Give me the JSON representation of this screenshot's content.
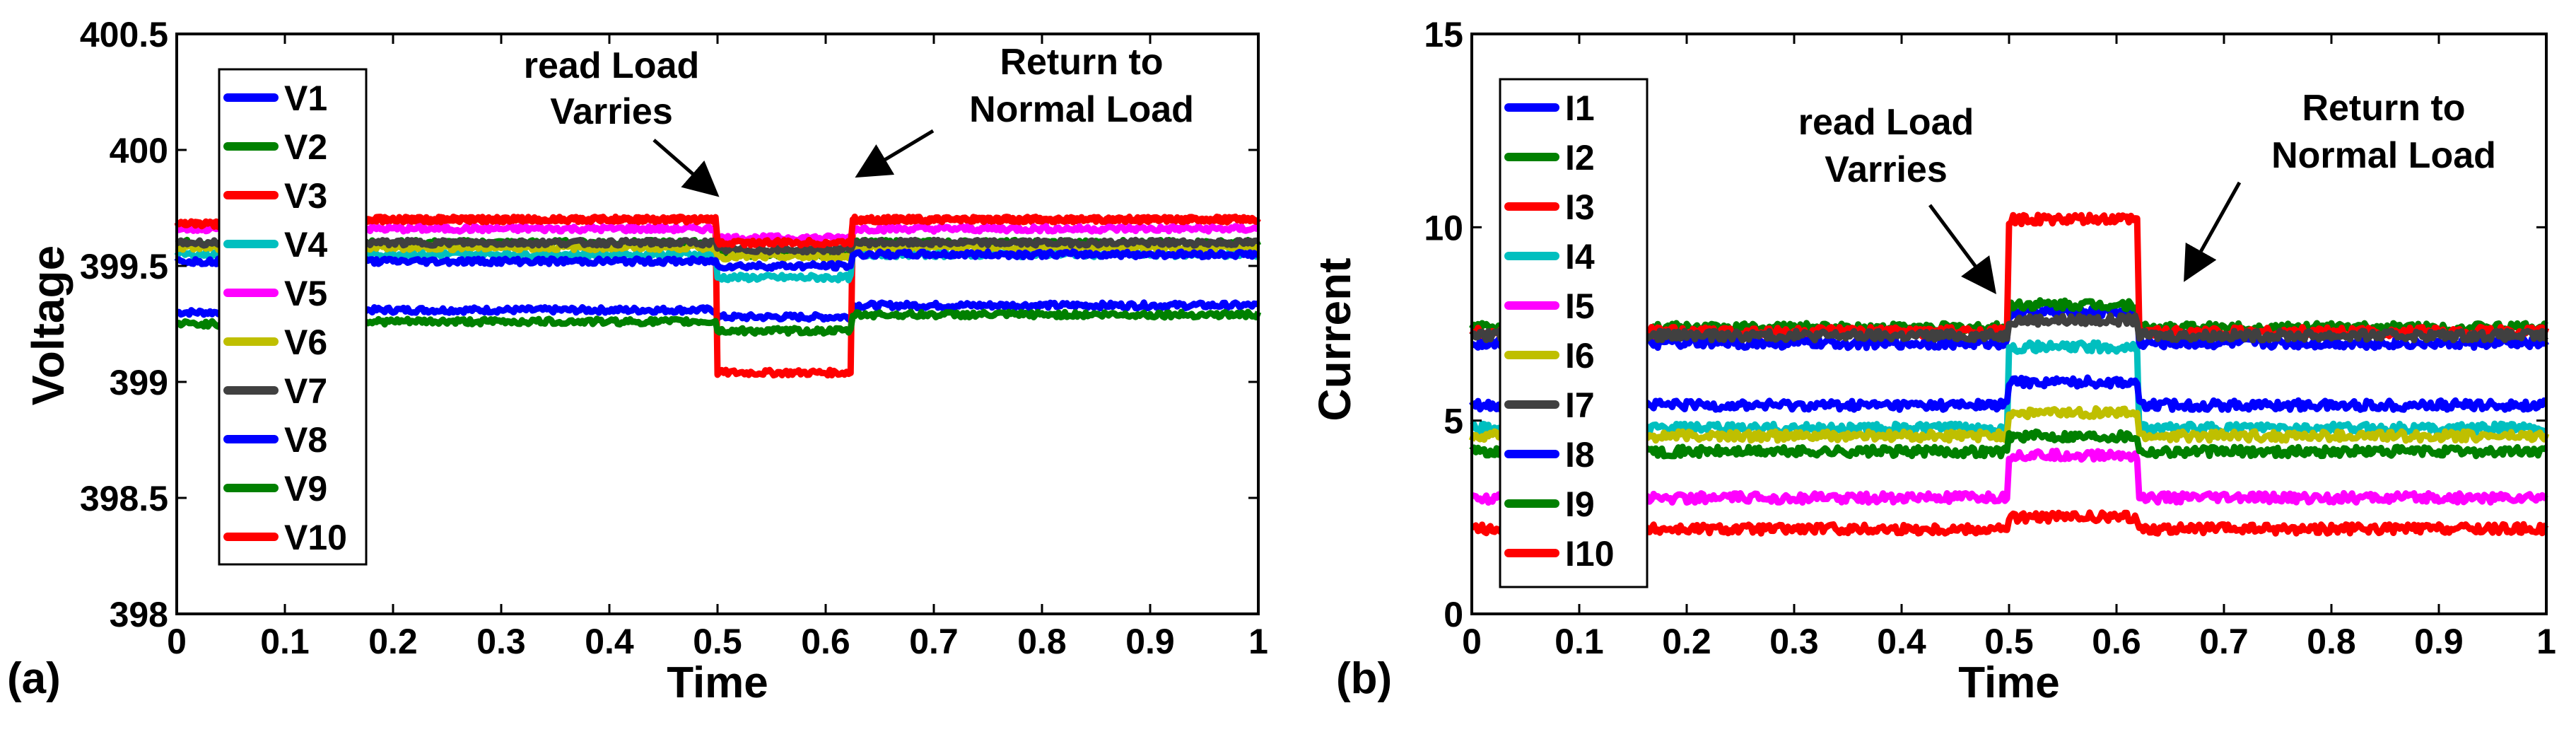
{
  "chart_data": [
    {
      "type": "line",
      "panel_label": "(a)",
      "title": "",
      "xlabel": "Time",
      "ylabel": "Voltage",
      "xlim": [
        0,
        1
      ],
      "ylim": [
        398,
        400.5
      ],
      "xticks": [
        "0",
        "0.1",
        "0.2",
        "0.3",
        "0.4",
        "0.5",
        "0.6",
        "0.7",
        "0.8",
        "0.9",
        "1"
      ],
      "xtick_values": [
        0,
        0.1,
        0.2,
        0.3,
        0.4,
        0.5,
        0.6,
        0.7,
        0.8,
        0.9,
        1
      ],
      "yticks": [
        "398",
        "398.5",
        "399",
        "399.5",
        "400",
        "400.5"
      ],
      "ytick_values": [
        398,
        398.5,
        399,
        399.5,
        400,
        400.5
      ],
      "legend_position": "left",
      "annotations": [
        {
          "text": [
            "read Load",
            "Varries"
          ],
          "arrow_to": [
            0.5,
            399.77
          ]
        },
        {
          "text": [
            "Return to",
            "Normal Load"
          ],
          "arrow_to": [
            0.625,
            399.83
          ]
        }
      ],
      "x": [
        0,
        0.17,
        0.5,
        0.625,
        1
      ],
      "series": [
        {
          "name": "V1",
          "color": "#0000ff",
          "values": [
            399.3,
            399.31,
            399.28,
            399.33,
            399.33
          ]
        },
        {
          "name": "V2",
          "color": "#008000",
          "values": [
            399.6,
            399.6,
            399.55,
            399.6,
            399.6
          ]
        },
        {
          "name": "V3",
          "color": "#ff0000",
          "values": [
            399.68,
            399.7,
            399.04,
            399.7,
            399.73
          ]
        },
        {
          "name": "V4",
          "color": "#00bfbf",
          "values": [
            399.55,
            399.55,
            399.45,
            399.55,
            399.55
          ]
        },
        {
          "name": "V5",
          "color": "#ff00ff",
          "values": [
            399.66,
            399.66,
            399.62,
            399.66,
            399.66
          ]
        },
        {
          "name": "V6",
          "color": "#bfbf00",
          "values": [
            399.58,
            399.58,
            399.54,
            399.58,
            399.58
          ]
        },
        {
          "name": "V7",
          "color": "#404040",
          "values": [
            399.6,
            399.6,
            399.57,
            399.6,
            399.6
          ]
        },
        {
          "name": "V8",
          "color": "#0000ff",
          "values": [
            399.52,
            399.52,
            399.5,
            399.55,
            399.55
          ]
        },
        {
          "name": "V9",
          "color": "#008000",
          "values": [
            399.25,
            399.26,
            399.22,
            399.29,
            399.29
          ]
        },
        {
          "name": "V10",
          "color": "#ff0000",
          "values": [
            399.68,
            399.7,
            399.6,
            399.7,
            399.73
          ]
        }
      ]
    },
    {
      "type": "line",
      "panel_label": "(b)",
      "title": "",
      "xlabel": "Time",
      "ylabel": "Current",
      "xlim": [
        0,
        1
      ],
      "ylim": [
        0,
        15
      ],
      "xticks": [
        "0",
        "0.1",
        "0.2",
        "0.3",
        "0.4",
        "0.5",
        "0.6",
        "0.7",
        "0.8",
        "0.9",
        "1"
      ],
      "xtick_values": [
        0,
        0.1,
        0.2,
        0.3,
        0.4,
        0.5,
        0.6,
        0.7,
        0.8,
        0.9,
        1
      ],
      "yticks": [
        "0",
        "5",
        "10",
        "15"
      ],
      "ytick_values": [
        0,
        5,
        10,
        15
      ],
      "legend_position": "left",
      "annotations": [
        {
          "text": [
            "read Load",
            "Varries"
          ],
          "arrow_to": [
            0.49,
            8.2
          ]
        },
        {
          "text": [
            "Return to",
            "Normal Load"
          ],
          "arrow_to": [
            0.65,
            8.6
          ]
        }
      ],
      "x": [
        0,
        0.5,
        0.62,
        1
      ],
      "series": [
        {
          "name": "I1",
          "color": "#0000ff",
          "values": [
            7.0,
            7.8,
            7.0,
            7.0
          ]
        },
        {
          "name": "I2",
          "color": "#008000",
          "values": [
            7.4,
            8.0,
            7.4,
            7.4
          ]
        },
        {
          "name": "I3",
          "color": "#ff0000",
          "values": [
            7.3,
            10.2,
            7.3,
            7.3
          ]
        },
        {
          "name": "I4",
          "color": "#00bfbf",
          "values": [
            4.8,
            6.9,
            4.8,
            4.8
          ]
        },
        {
          "name": "I5",
          "color": "#ff00ff",
          "values": [
            3.0,
            4.1,
            3.0,
            3.0
          ]
        },
        {
          "name": "I6",
          "color": "#bfbf00",
          "values": [
            4.6,
            5.2,
            4.6,
            4.6
          ]
        },
        {
          "name": "I7",
          "color": "#404040",
          "values": [
            7.2,
            7.6,
            7.2,
            7.2
          ]
        },
        {
          "name": "I8",
          "color": "#0000ff",
          "values": [
            5.4,
            6.0,
            5.4,
            5.4
          ]
        },
        {
          "name": "I9",
          "color": "#008000",
          "values": [
            4.2,
            4.6,
            4.2,
            4.2
          ]
        },
        {
          "name": "I10",
          "color": "#ff0000",
          "values": [
            2.2,
            2.5,
            2.2,
            2.2
          ]
        }
      ]
    }
  ]
}
